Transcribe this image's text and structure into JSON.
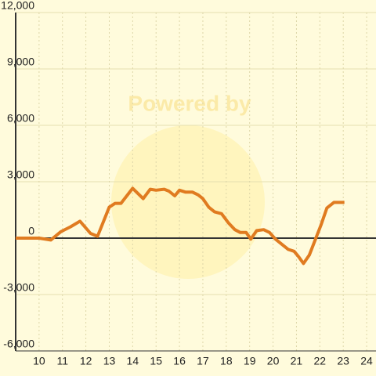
{
  "chart_data": {
    "type": "line",
    "watermark": "Powered by",
    "x": [
      9,
      10,
      10.5,
      10.94,
      11.34,
      11.75,
      12.2,
      12.5,
      13.0,
      13.25,
      13.5,
      14.0,
      14.45,
      14.75,
      15.0,
      15.35,
      15.55,
      15.8,
      16.0,
      16.25,
      16.55,
      16.8,
      17.0,
      17.25,
      17.5,
      17.8,
      18.1,
      18.37,
      18.6,
      18.85,
      19.05,
      19.3,
      19.6,
      19.85,
      20.1,
      20.4,
      20.65,
      20.9,
      21.1,
      21.3,
      21.55,
      21.8,
      22.05,
      22.3,
      22.6,
      23.05
    ],
    "series": [
      {
        "color": "#e07b20",
        "values": [
          0,
          0,
          -100,
          350,
          600,
          900,
          250,
          100,
          1650,
          1850,
          1850,
          2650,
          2100,
          2600,
          2550,
          2600,
          2500,
          2250,
          2550,
          2450,
          2450,
          2300,
          2100,
          1650,
          1400,
          1300,
          800,
          450,
          300,
          300,
          -50,
          400,
          450,
          300,
          -50,
          -350,
          -600,
          -700,
          -1000,
          -1350,
          -900,
          -100,
          700,
          1600,
          1900,
          1900
        ]
      }
    ],
    "xlim": [
      9,
      24.4
    ],
    "xticks": [
      10,
      11,
      12,
      13,
      14,
      15,
      16,
      17,
      18,
      19,
      20,
      21,
      22,
      23,
      24
    ],
    "ylim": [
      -6000,
      12000
    ],
    "yticks": [
      {
        "value": -6000,
        "label": "-6,000"
      },
      {
        "value": -3000,
        "label": "-3,000"
      },
      0,
      {
        "value": 3000,
        "label": "3,000"
      },
      {
        "value": 6000,
        "label": "6,000"
      },
      {
        "value": 9000,
        "label": "9,000"
      },
      {
        "value": 12000,
        "label": "12,000"
      }
    ],
    "grid": true
  }
}
